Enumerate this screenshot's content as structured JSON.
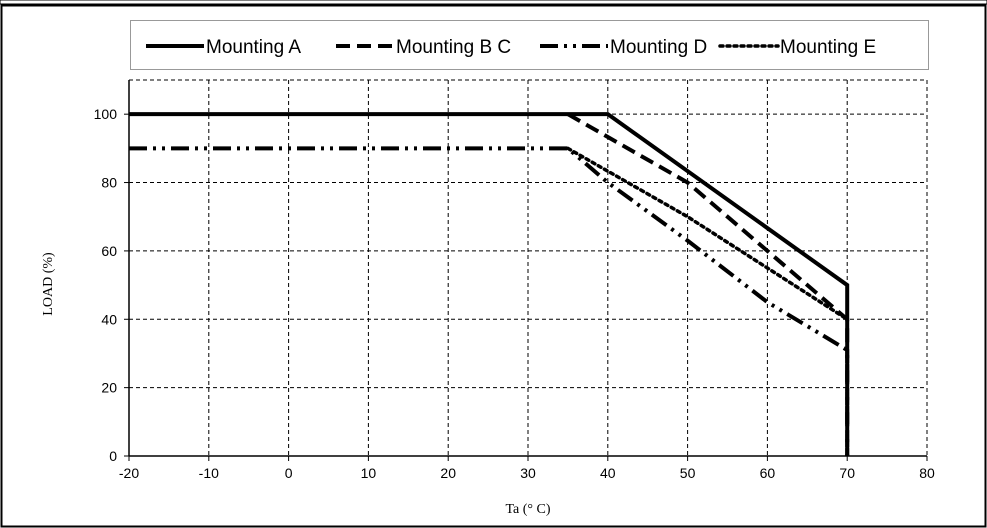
{
  "chart_data": {
    "type": "line",
    "xlabel": "Ta (° C)",
    "ylabel": "LOAD (%)",
    "xlim": [
      -20,
      80
    ],
    "ylim": [
      0,
      110
    ],
    "x_ticks": [
      -20,
      -10,
      0,
      10,
      20,
      30,
      40,
      50,
      60,
      70,
      80
    ],
    "y_ticks": [
      0,
      20,
      40,
      60,
      80,
      100
    ],
    "grid": true,
    "legend_position": "top",
    "series": [
      {
        "name": "Mounting A",
        "style": "solid",
        "color": "#000000",
        "points": [
          [
            -20,
            100
          ],
          [
            40,
            100
          ],
          [
            70,
            50
          ],
          [
            70,
            0
          ]
        ]
      },
      {
        "name": "Mounting B C",
        "style": "dashed",
        "color": "#000000",
        "points": [
          [
            35,
            100
          ],
          [
            50,
            80
          ],
          [
            70,
            40
          ],
          [
            70,
            0
          ]
        ]
      },
      {
        "name": "Mounting D",
        "style": "dash-dot",
        "color": "#000000",
        "points": [
          [
            -20,
            90
          ],
          [
            35,
            90
          ],
          [
            40,
            80
          ],
          [
            50,
            63
          ],
          [
            60,
            45
          ],
          [
            70,
            31
          ],
          [
            70,
            0
          ]
        ]
      },
      {
        "name": "Mounting E",
        "style": "dotted",
        "color": "#000000",
        "points": [
          [
            35,
            90
          ],
          [
            50,
            70
          ],
          [
            60,
            55
          ],
          [
            70,
            40
          ]
        ]
      }
    ]
  }
}
